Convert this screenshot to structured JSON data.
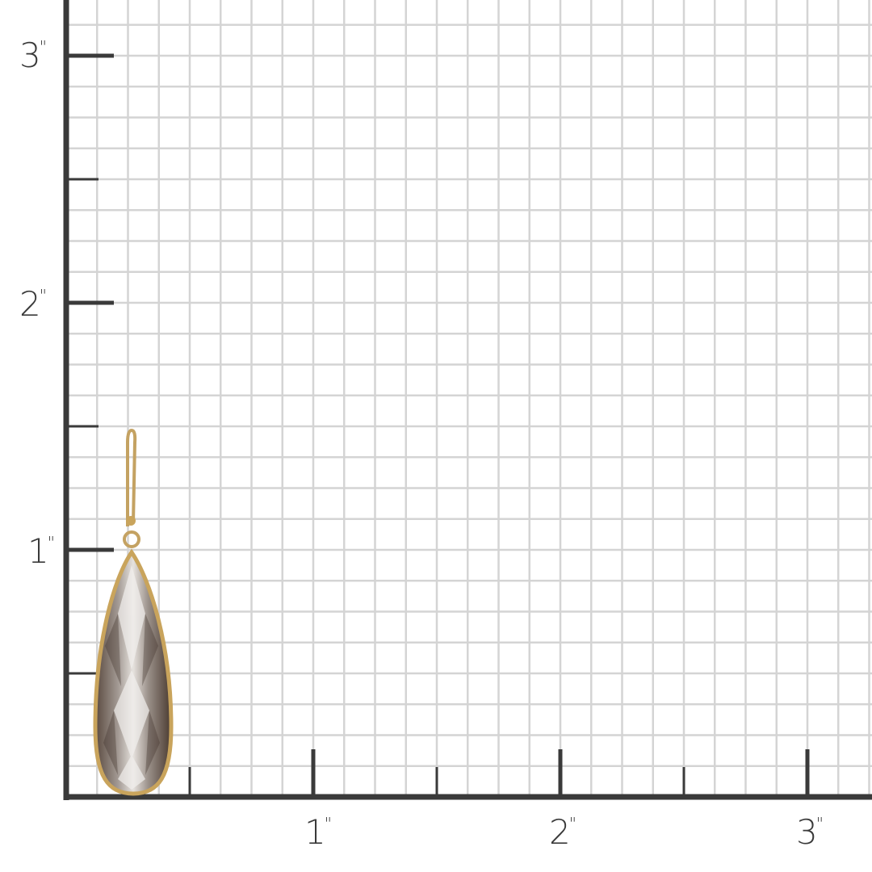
{
  "ruler": {
    "unit_mark": "\"",
    "y_labels": [
      "3",
      "2",
      "1"
    ],
    "x_labels": [
      "1",
      "2",
      "3"
    ],
    "grid_subdivisions_per_inch": 8,
    "colors": {
      "axis": "#3a3a3a",
      "grid": "#d4d4d4",
      "metal": "#c9a45c",
      "stone": "#8a7f78"
    }
  },
  "product": {
    "icon": "teardrop-earring-photo"
  }
}
